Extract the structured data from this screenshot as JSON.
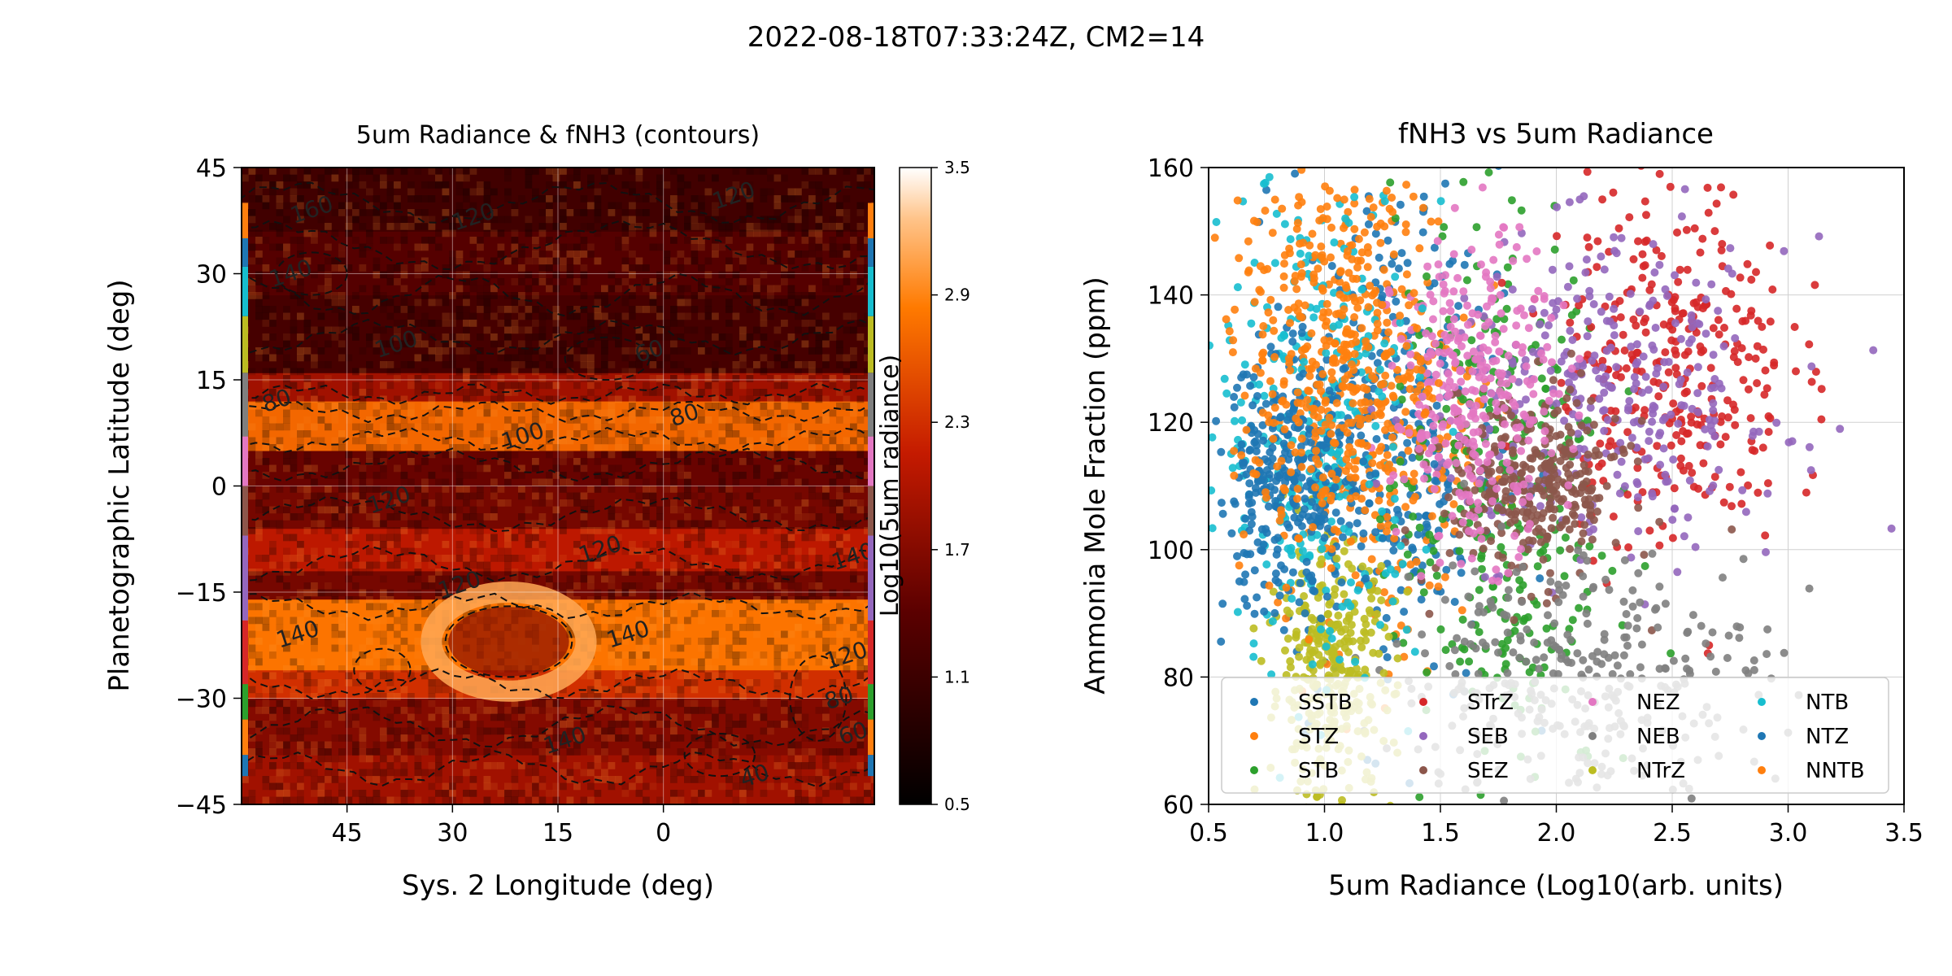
{
  "figure": {
    "title": "2022-08-18T07:33:24Z, CM2=14"
  },
  "chart_data": [
    {
      "type": "heatmap",
      "title": "5um Radiance & fNH3 (contours)",
      "xlabel": "Sys. 2 Longitude (deg)",
      "ylabel": "Planetographic Latitude (deg)",
      "xlim": [
        60,
        -30
      ],
      "ylim": [
        -45,
        45
      ],
      "xticks": [
        "45",
        "30",
        "15",
        "0"
      ],
      "xtick_values": [
        45,
        30,
        15,
        0
      ],
      "yticks": [
        "45",
        "30",
        "15",
        "0",
        "−15",
        "−30",
        "−45"
      ],
      "ytick_values": [
        45,
        30,
        15,
        0,
        -15,
        -30,
        -45
      ],
      "grid": true,
      "colormap": "gist_heat",
      "colorbar": {
        "label": "Log10(5um radiance)",
        "range": [
          0.5,
          3.5
        ],
        "ticks": [
          "3.5",
          "2.9",
          "2.3",
          "1.7",
          "1.1",
          "0.5"
        ],
        "tick_values": [
          3.5,
          2.9,
          2.3,
          1.7,
          1.1,
          0.5
        ]
      },
      "bands": [
        {
          "lat_range": [
            -45,
            -38
          ],
          "value": 1.9
        },
        {
          "lat_range": [
            -38,
            -30
          ],
          "value": 1.7
        },
        {
          "lat_range": [
            -30,
            -26
          ],
          "value": 2.3
        },
        {
          "lat_range": [
            -26,
            -16
          ],
          "value": 2.8
        },
        {
          "lat_range": [
            -16,
            -12
          ],
          "value": 1.6
        },
        {
          "lat_range": [
            -12,
            -6
          ],
          "value": 2.1
        },
        {
          "lat_range": [
            -6,
            0
          ],
          "value": 1.6
        },
        {
          "lat_range": [
            0,
            5
          ],
          "value": 1.5
        },
        {
          "lat_range": [
            5,
            12
          ],
          "value": 2.7
        },
        {
          "lat_range": [
            12,
            16
          ],
          "value": 1.9
        },
        {
          "lat_range": [
            16,
            27
          ],
          "value": 1.2
        },
        {
          "lat_range": [
            27,
            36
          ],
          "value": 1.35
        },
        {
          "lat_range": [
            36,
            45
          ],
          "value": 1.15
        }
      ],
      "features": [
        {
          "kind": "oval",
          "center": [
            22,
            -22
          ],
          "radius": [
            11,
            7
          ],
          "value": 3.1
        }
      ],
      "contour_labels": [
        {
          "text": "160",
          "lon": 50,
          "lat": 39
        },
        {
          "text": "120",
          "lon": 27,
          "lat": 38
        },
        {
          "text": "120",
          "lon": -10,
          "lat": 41
        },
        {
          "text": "140",
          "lon": 53,
          "lat": 30
        },
        {
          "text": "100",
          "lon": 38,
          "lat": 20
        },
        {
          "text": "60",
          "lon": 2,
          "lat": 19
        },
        {
          "text": "80",
          "lon": 55,
          "lat": 12
        },
        {
          "text": "100",
          "lon": 20,
          "lat": 7
        },
        {
          "text": "80",
          "lon": -3,
          "lat": 10
        },
        {
          "text": "120",
          "lon": 39,
          "lat": -2
        },
        {
          "text": "120",
          "lon": 9,
          "lat": -9
        },
        {
          "text": "140",
          "lon": -27,
          "lat": -10
        },
        {
          "text": "120",
          "lon": 29,
          "lat": -14
        },
        {
          "text": "140",
          "lon": 5,
          "lat": -21
        },
        {
          "text": "140",
          "lon": 52,
          "lat": -21
        },
        {
          "text": "120",
          "lon": -26,
          "lat": -24
        },
        {
          "text": "80",
          "lon": -25,
          "lat": -30
        },
        {
          "text": "60",
          "lon": -27,
          "lat": -35
        },
        {
          "text": "140",
          "lon": 14,
          "lat": -36
        },
        {
          "text": "40",
          "lon": -13,
          "lat": -41
        }
      ],
      "zone_strips": [
        {
          "lat_range": [
            -41,
            -38
          ],
          "color": "#1f77b4"
        },
        {
          "lat_range": [
            -38,
            -33
          ],
          "color": "#ff7f0e"
        },
        {
          "lat_range": [
            -33,
            -28
          ],
          "color": "#2ca02c"
        },
        {
          "lat_range": [
            -28,
            -19
          ],
          "color": "#d62728"
        },
        {
          "lat_range": [
            -19,
            -7
          ],
          "color": "#9467bd"
        },
        {
          "lat_range": [
            -7,
            0
          ],
          "color": "#8c564b"
        },
        {
          "lat_range": [
            0,
            7
          ],
          "color": "#e377c2"
        },
        {
          "lat_range": [
            7,
            16
          ],
          "color": "#7f7f7f"
        },
        {
          "lat_range": [
            16,
            24
          ],
          "color": "#bcbd22"
        },
        {
          "lat_range": [
            24,
            31
          ],
          "color": "#17becf"
        },
        {
          "lat_range": [
            31,
            35
          ],
          "color": "#1f77b4"
        },
        {
          "lat_range": [
            35,
            40
          ],
          "color": "#ff7f0e"
        }
      ]
    },
    {
      "type": "scatter",
      "title": "fNH3 vs 5um Radiance",
      "xlabel": "5um Radiance (Log10(arb. units)",
      "ylabel": "Ammonia Mole Fraction (ppm)",
      "xlim": [
        0.5,
        3.5
      ],
      "ylim": [
        60,
        160
      ],
      "xticks": [
        "0.5",
        "1.0",
        "1.5",
        "2.0",
        "2.5",
        "3.0",
        "3.5"
      ],
      "xtick_values": [
        0.5,
        1.0,
        1.5,
        2.0,
        2.5,
        3.0,
        3.5
      ],
      "yticks": [
        "60",
        "80",
        "100",
        "120",
        "140",
        "160"
      ],
      "ytick_values": [
        60,
        80,
        100,
        120,
        140,
        160
      ],
      "grid": true,
      "legend": {
        "placement": "lower-center",
        "columns": 4
      },
      "series": [
        {
          "name": "SSTB",
          "color": "#1f77b4",
          "cluster": {
            "x": [
              0.85,
              1.75
            ],
            "y": [
              75,
              160
            ]
          }
        },
        {
          "name": "STZ",
          "color": "#ff7f0e",
          "cluster": {
            "x": [
              0.8,
              1.65
            ],
            "y": [
              85,
              160
            ]
          }
        },
        {
          "name": "STB",
          "color": "#2ca02c",
          "cluster": {
            "x": [
              1.3,
              2.2
            ],
            "y": [
              60,
              155
            ]
          }
        },
        {
          "name": "STrZ",
          "color": "#d62728",
          "cluster": {
            "x": [
              2.0,
              3.0
            ],
            "y": [
              100,
              158
            ]
          }
        },
        {
          "name": "SEB",
          "color": "#9467bd",
          "cluster": {
            "x": [
              1.5,
              3.0
            ],
            "y": [
              100,
              148
            ]
          }
        },
        {
          "name": "SEZ",
          "color": "#8c564b",
          "cluster": {
            "x": [
              1.5,
              2.3
            ],
            "y": [
              95,
              125
            ]
          }
        },
        {
          "name": "NEZ",
          "color": "#e377c2",
          "cluster": {
            "x": [
              1.3,
              2.0
            ],
            "y": [
              100,
              148
            ]
          }
        },
        {
          "name": "NEB",
          "color": "#7f7f7f",
          "cluster": {
            "x": [
              1.3,
              2.9
            ],
            "y": [
              60,
              100
            ]
          }
        },
        {
          "name": "NTrZ",
          "color": "#bcbd22",
          "cluster": {
            "x": [
              0.75,
              1.3
            ],
            "y": [
              60,
              100
            ]
          }
        },
        {
          "name": "NTB",
          "color": "#17becf",
          "cluster": {
            "x": [
              0.55,
              1.4
            ],
            "y": [
              80,
              160
            ]
          }
        },
        {
          "name": "NTZ",
          "color": "#1f77b4",
          "cluster": {
            "x": [
              0.5,
              1.2
            ],
            "y": [
              90,
              130
            ]
          }
        },
        {
          "name": "NNTB",
          "color": "#ff7f0e",
          "cluster": {
            "x": [
              0.6,
              1.4
            ],
            "y": [
              100,
              160
            ]
          }
        }
      ]
    }
  ]
}
